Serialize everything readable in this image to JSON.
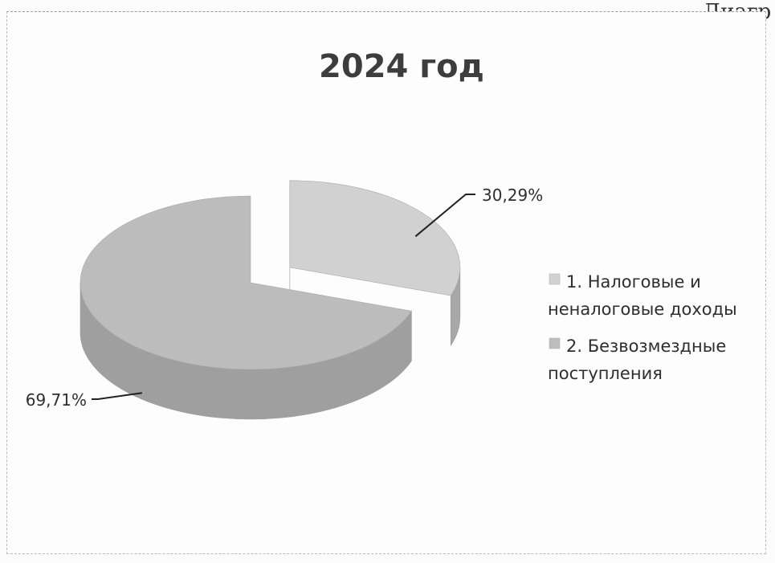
{
  "page": {
    "corner_text": "Диагр"
  },
  "chart_data": {
    "type": "pie",
    "title": "2024 год",
    "slices": [
      {
        "label_lines": [
          "1. Налоговые и",
          "неналоговые доходы"
        ],
        "value": 30.29,
        "value_label": "30,29%",
        "color": "#d2d2d2",
        "side_color": "#a8a8a8",
        "exploded": true
      },
      {
        "label_lines": [
          "2. Безвозмездные",
          "поступления"
        ],
        "value": 69.71,
        "value_label": "69,71%",
        "color": "#bdbdbd",
        "side_color": "#a0a0a0",
        "exploded": false
      }
    ],
    "legend_position": "right"
  }
}
